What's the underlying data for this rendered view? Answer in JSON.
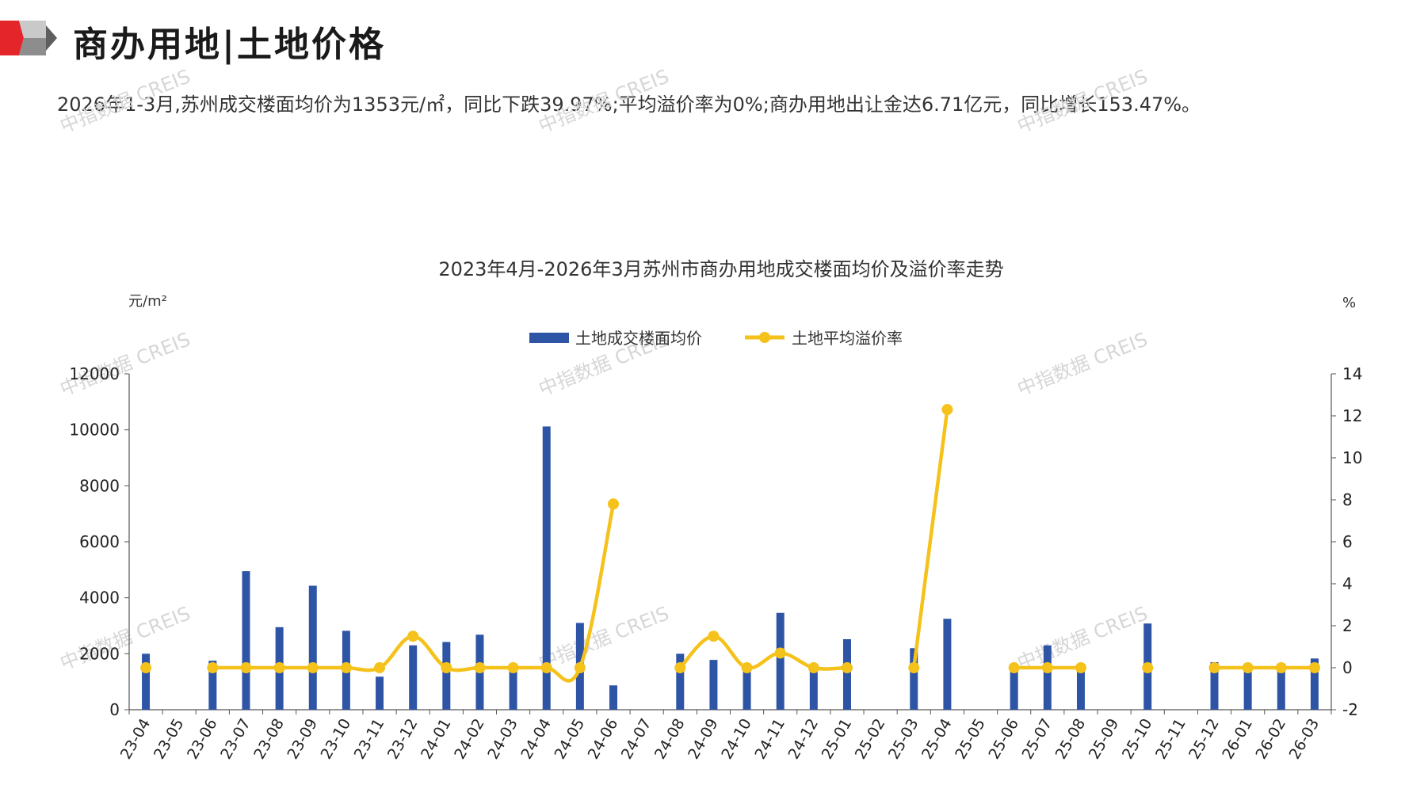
{
  "header": {
    "title": "商办用地|土地价格"
  },
  "summary": "2026年1-3月,苏州成交楼面均价为1353元/㎡，同比下跌39.97%;平均溢价率为0%;商办用地出让金达6.71亿元，同比增长153.47%。",
  "watermark_text": "中指数据 CREIS",
  "colors": {
    "bar": "#2e55a5",
    "line": "#f5c21b",
    "accent_red": "#e4262b",
    "accent_grey": "#9a9a9a"
  },
  "chart_data": {
    "type": "bar",
    "title": "2023年4月-2026年3月苏州市商办用地成交楼面均价及溢价率走势",
    "y_left_unit": "元/m²",
    "y_right_unit": "%",
    "y_left_range": [
      0,
      12000
    ],
    "y_left_ticks": [
      "0",
      "2000",
      "4000",
      "6000",
      "8000",
      "10000",
      "12000"
    ],
    "y_right_range": [
      -2,
      14
    ],
    "y_right_ticks": [
      "-2",
      "0",
      "2",
      "4",
      "6",
      "8",
      "10",
      "12",
      "14"
    ],
    "legend_position": "top-center",
    "categories": [
      "23-04",
      "23-05",
      "23-06",
      "23-07",
      "23-08",
      "23-09",
      "23-10",
      "23-11",
      "23-12",
      "24-01",
      "24-02",
      "24-03",
      "24-04",
      "24-05",
      "24-06",
      "24-07",
      "24-08",
      "24-09",
      "24-10",
      "24-11",
      "24-12",
      "25-01",
      "25-02",
      "25-03",
      "25-04",
      "25-05",
      "25-06",
      "25-07",
      "25-08",
      "25-09",
      "25-10",
      "25-11",
      "25-12",
      "26-01",
      "26-02",
      "26-03"
    ],
    "series": [
      {
        "name": "土地成交楼面均价",
        "type": "bar",
        "axis": "left",
        "values": [
          2000,
          null,
          1750,
          4950,
          2950,
          4430,
          2820,
          1180,
          2300,
          2420,
          2680,
          1600,
          10120,
          3100,
          870,
          null,
          2000,
          1780,
          1550,
          3460,
          1380,
          2520,
          null,
          2200,
          3250,
          null,
          1500,
          2300,
          1400,
          null,
          3080,
          null,
          1700,
          1550,
          1380,
          1830
        ]
      },
      {
        "name": "土地平均溢价率",
        "type": "line",
        "axis": "right",
        "values": [
          0,
          null,
          0,
          0,
          0,
          0,
          0,
          0,
          1.5,
          0,
          0,
          0,
          0,
          0,
          7.8,
          null,
          0,
          1.5,
          0,
          0.7,
          0,
          0,
          null,
          0,
          12.3,
          null,
          0,
          0,
          0,
          null,
          0,
          null,
          0,
          0,
          0,
          0
        ]
      }
    ]
  }
}
